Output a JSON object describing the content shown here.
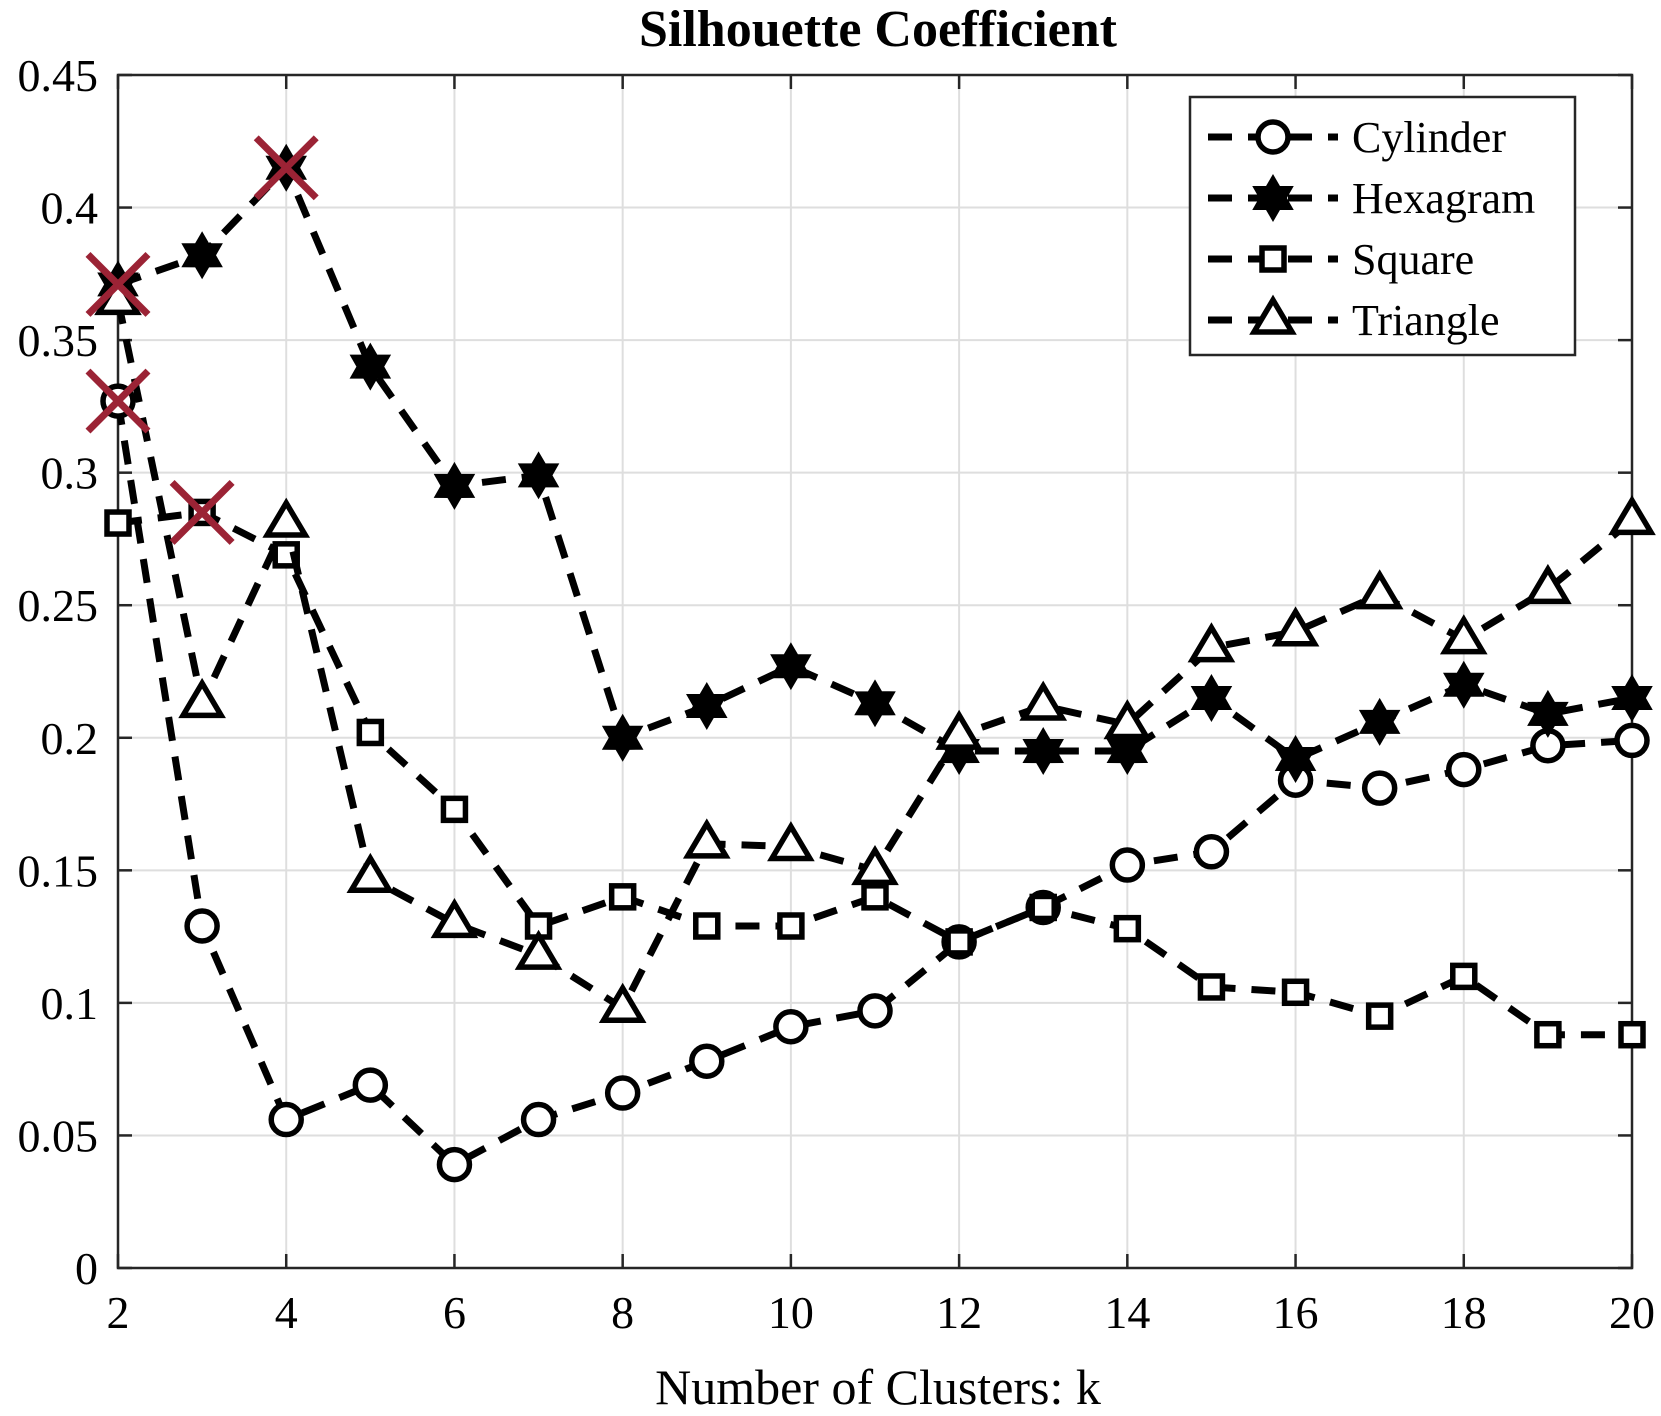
{
  "chart_data": {
    "type": "line",
    "title": "Silhouette Coefficient",
    "xlabel": "Number of Clusters: k",
    "ylabel": "",
    "xlim": [
      2,
      20
    ],
    "ylim": [
      0,
      0.45
    ],
    "grid": true,
    "legend_position": "top-right",
    "x": [
      2,
      3,
      4,
      5,
      6,
      7,
      8,
      9,
      10,
      11,
      12,
      13,
      14,
      15,
      16,
      17,
      18,
      19,
      20
    ],
    "x_ticks": [
      2,
      4,
      6,
      8,
      10,
      12,
      14,
      16,
      18,
      20
    ],
    "x_tick_labels": [
      "2",
      "4",
      "6",
      "8",
      "10",
      "12",
      "14",
      "16",
      "18",
      "20"
    ],
    "y_ticks": [
      0,
      0.05,
      0.1,
      0.15,
      0.2,
      0.25,
      0.3,
      0.35,
      0.4,
      0.45
    ],
    "y_tick_labels": [
      "0",
      "0.05",
      "0.1",
      "0.15",
      "0.2",
      "0.25",
      "0.3",
      "0.35",
      "0.4",
      "0.45"
    ],
    "series": [
      {
        "name": "Cylinder",
        "marker": "circle",
        "line_style": "dashed",
        "color": "#000000",
        "values": [
          0.327,
          0.129,
          0.056,
          0.069,
          0.039,
          0.056,
          0.066,
          0.078,
          0.091,
          0.097,
          0.123,
          0.136,
          0.152,
          0.157,
          0.184,
          0.181,
          0.188,
          0.197,
          0.199
        ]
      },
      {
        "name": "Hexagram",
        "marker": "hexagram",
        "line_style": "dashed",
        "color": "#000000",
        "values": [
          0.371,
          0.382,
          0.415,
          0.34,
          0.295,
          0.299,
          0.2,
          0.212,
          0.227,
          0.213,
          0.195,
          0.195,
          0.195,
          0.215,
          0.192,
          0.206,
          0.22,
          0.209,
          0.215
        ]
      },
      {
        "name": "Square",
        "marker": "square",
        "line_style": "dashed",
        "color": "#000000",
        "values": [
          0.281,
          0.285,
          0.269,
          0.202,
          0.173,
          0.129,
          0.14,
          0.129,
          0.129,
          0.14,
          0.123,
          0.136,
          0.128,
          0.106,
          0.104,
          0.095,
          0.11,
          0.088,
          0.088
        ]
      },
      {
        "name": "Triangle",
        "marker": "triangle",
        "line_style": "dashed",
        "color": "#000000",
        "values": [
          0.365,
          0.213,
          0.281,
          0.147,
          0.13,
          0.118,
          0.098,
          0.16,
          0.159,
          0.15,
          0.201,
          0.212,
          0.205,
          0.234,
          0.24,
          0.254,
          0.237,
          0.256,
          0.282
        ]
      }
    ],
    "highlight_markers": {
      "marker": "x",
      "color": "#9b2335",
      "points": [
        {
          "x": 2,
          "y": 0.371
        },
        {
          "x": 2,
          "y": 0.327
        },
        {
          "x": 3,
          "y": 0.285
        },
        {
          "x": 4,
          "y": 0.415
        }
      ]
    }
  }
}
